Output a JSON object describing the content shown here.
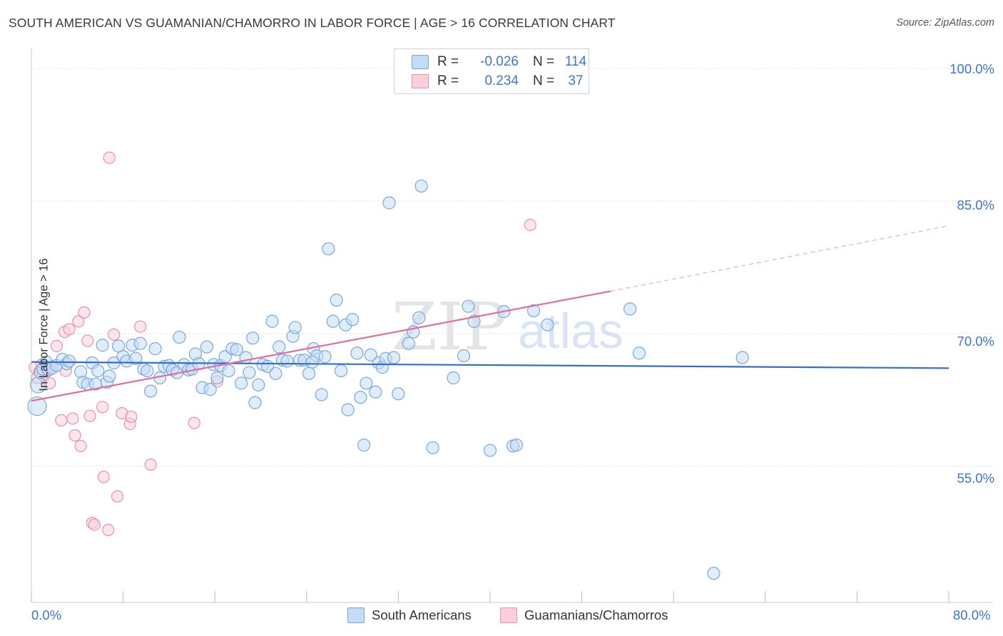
{
  "title": "SOUTH AMERICAN VS GUAMANIAN/CHAMORRO IN LABOR FORCE | AGE > 16 CORRELATION CHART",
  "source": "Source: ZipAtlas.com",
  "watermark": {
    "zip": "ZIP",
    "atlas": "atlas"
  },
  "legend": {
    "rows": [
      {
        "r_label": "R =",
        "r_value": "-0.026",
        "n_label": "N =",
        "n_value": "114",
        "color": "#9ec4ef"
      },
      {
        "r_label": "R =",
        "r_value": "0.234",
        "n_label": "N =",
        "n_value": "37",
        "color": "#f7b6cb"
      }
    ]
  },
  "bottom_legend": [
    "South Americans",
    "Guamanians/Chamorros"
  ],
  "colors": {
    "blue_fill": "#c5dcf6",
    "blue_stroke": "#7aa8de",
    "blue_line": "#2f6fcf",
    "pink_fill": "#f9cfdc",
    "pink_stroke": "#e890ad",
    "pink_line": "#e0709a",
    "tick_text": "#3b78c9",
    "grid": "#dcdcdc"
  },
  "chart_data": {
    "type": "scatter",
    "title": "SOUTH AMERICAN VS GUAMANIAN/CHAMORRO IN LABOR FORCE | AGE > 16 CORRELATION CHART",
    "xlabel": "",
    "ylabel": "In Labor Force | Age > 16",
    "xlim": [
      0,
      80
    ],
    "ylim": [
      42,
      103
    ],
    "x_tick_labels": [
      "0.0%",
      "80.0%"
    ],
    "y_ticks": [
      55,
      70,
      85,
      100
    ],
    "y_tick_labels": [
      "55.0%",
      "70.0%",
      "85.0%",
      "100.0%"
    ],
    "grid": true,
    "legend_position": "top-center",
    "series": [
      {
        "name": "South Americans",
        "R": -0.026,
        "N": 114,
        "trend": {
          "x": [
            0,
            80
          ],
          "y": [
            66.8,
            66.1
          ],
          "dashed_extension": false
        },
        "points": [
          [
            0.5,
            61.8
          ],
          [
            0.6,
            64.2
          ],
          [
            0.8,
            65.6
          ],
          [
            1.0,
            66.0
          ],
          [
            1.3,
            66.8
          ],
          [
            1.5,
            65.9
          ],
          [
            1.8,
            66.1
          ],
          [
            2.2,
            66.4
          ],
          [
            2.7,
            67.1
          ],
          [
            3.1,
            66.6
          ],
          [
            3.3,
            66.9
          ],
          [
            4.3,
            65.7
          ],
          [
            4.5,
            64.5
          ],
          [
            4.9,
            64.3
          ],
          [
            5.3,
            66.7
          ],
          [
            5.6,
            64.3
          ],
          [
            5.8,
            65.8
          ],
          [
            6.2,
            68.7
          ],
          [
            6.6,
            64.5
          ],
          [
            6.8,
            65.2
          ],
          [
            7.2,
            66.7
          ],
          [
            7.6,
            68.6
          ],
          [
            8.0,
            67.4
          ],
          [
            8.3,
            66.9
          ],
          [
            8.8,
            68.7
          ],
          [
            9.1,
            67.2
          ],
          [
            9.5,
            68.9
          ],
          [
            9.8,
            66.0
          ],
          [
            10.1,
            65.8
          ],
          [
            10.4,
            63.5
          ],
          [
            10.8,
            68.3
          ],
          [
            11.2,
            65.0
          ],
          [
            11.6,
            66.3
          ],
          [
            12.0,
            66.4
          ],
          [
            12.3,
            65.9
          ],
          [
            12.7,
            65.6
          ],
          [
            12.9,
            69.6
          ],
          [
            13.3,
            66.5
          ],
          [
            13.7,
            65.9
          ],
          [
            14.0,
            66.0
          ],
          [
            14.3,
            67.7
          ],
          [
            14.6,
            66.6
          ],
          [
            14.9,
            63.9
          ],
          [
            15.3,
            68.5
          ],
          [
            15.6,
            63.7
          ],
          [
            15.9,
            66.5
          ],
          [
            16.2,
            65.0
          ],
          [
            16.5,
            66.4
          ],
          [
            16.9,
            67.4
          ],
          [
            17.2,
            65.8
          ],
          [
            17.5,
            68.3
          ],
          [
            17.9,
            68.2
          ],
          [
            18.3,
            64.4
          ],
          [
            18.7,
            67.3
          ],
          [
            19.0,
            65.6
          ],
          [
            19.3,
            69.5
          ],
          [
            19.5,
            62.2
          ],
          [
            19.8,
            64.2
          ],
          [
            20.2,
            66.5
          ],
          [
            20.6,
            66.3
          ],
          [
            21.0,
            71.4
          ],
          [
            21.3,
            65.5
          ],
          [
            21.6,
            68.5
          ],
          [
            21.9,
            67.0
          ],
          [
            22.3,
            66.9
          ],
          [
            22.8,
            69.7
          ],
          [
            23.0,
            70.7
          ],
          [
            23.4,
            67.0
          ],
          [
            23.8,
            67.0
          ],
          [
            24.2,
            65.5
          ],
          [
            24.6,
            68.3
          ],
          [
            24.9,
            67.5
          ],
          [
            25.3,
            63.1
          ],
          [
            25.6,
            67.4
          ],
          [
            24.5,
            66.8
          ],
          [
            25.9,
            79.6
          ],
          [
            26.3,
            71.4
          ],
          [
            26.6,
            73.8
          ],
          [
            27.0,
            65.8
          ],
          [
            27.4,
            71.0
          ],
          [
            27.6,
            61.4
          ],
          [
            28.0,
            71.6
          ],
          [
            28.4,
            67.8
          ],
          [
            28.7,
            62.8
          ],
          [
            29.0,
            57.4
          ],
          [
            29.2,
            64.4
          ],
          [
            29.6,
            67.6
          ],
          [
            30.0,
            63.4
          ],
          [
            30.3,
            66.7
          ],
          [
            30.6,
            66.2
          ],
          [
            30.9,
            67.2
          ],
          [
            31.2,
            84.8
          ],
          [
            31.6,
            67.3
          ],
          [
            32.0,
            63.2
          ],
          [
            32.9,
            68.9
          ],
          [
            33.3,
            70.2
          ],
          [
            33.8,
            71.8
          ],
          [
            34.0,
            86.7
          ],
          [
            35.0,
            57.1
          ],
          [
            36.8,
            65.0
          ],
          [
            37.7,
            67.5
          ],
          [
            38.1,
            73.1
          ],
          [
            38.6,
            71.4
          ],
          [
            40.0,
            56.8
          ],
          [
            41.2,
            72.5
          ],
          [
            42.0,
            57.3
          ],
          [
            42.3,
            57.4
          ],
          [
            43.8,
            72.6
          ],
          [
            45.0,
            71.0
          ],
          [
            52.2,
            72.8
          ],
          [
            53.0,
            67.8
          ],
          [
            62.0,
            67.3
          ],
          [
            59.5,
            42.9
          ]
        ]
      },
      {
        "name": "Guamanians/Chamorros",
        "R": 0.234,
        "N": 37,
        "trend": {
          "x": [
            0,
            50.5
          ],
          "y": [
            62.4,
            74.8
          ],
          "dashed_extension": {
            "x": [
              50.5,
              80
            ],
            "y": [
              74.8,
              82.2
            ]
          }
        },
        "points": [
          [
            0.3,
            66.2
          ],
          [
            0.5,
            65.0
          ],
          [
            0.7,
            65.7
          ],
          [
            0.9,
            66.5
          ],
          [
            1.1,
            65.2
          ],
          [
            1.3,
            65.9
          ],
          [
            1.6,
            64.4
          ],
          [
            1.8,
            66.3
          ],
          [
            2.2,
            68.6
          ],
          [
            2.6,
            60.2
          ],
          [
            2.9,
            70.2
          ],
          [
            3.0,
            65.8
          ],
          [
            3.3,
            70.5
          ],
          [
            3.6,
            60.4
          ],
          [
            3.8,
            58.5
          ],
          [
            4.1,
            71.4
          ],
          [
            4.3,
            57.3
          ],
          [
            4.6,
            72.4
          ],
          [
            4.9,
            69.2
          ],
          [
            5.1,
            60.7
          ],
          [
            5.3,
            48.6
          ],
          [
            5.5,
            48.4
          ],
          [
            6.2,
            61.7
          ],
          [
            6.3,
            53.8
          ],
          [
            6.7,
            47.8
          ],
          [
            6.8,
            89.9
          ],
          [
            7.2,
            69.9
          ],
          [
            7.5,
            51.6
          ],
          [
            7.9,
            61.0
          ],
          [
            8.6,
            59.8
          ],
          [
            8.7,
            60.6
          ],
          [
            9.5,
            70.8
          ],
          [
            10.4,
            55.2
          ],
          [
            14.2,
            59.9
          ],
          [
            16.2,
            64.6
          ],
          [
            43.5,
            82.3
          ],
          [
            1.0,
            65.3
          ]
        ]
      }
    ]
  }
}
